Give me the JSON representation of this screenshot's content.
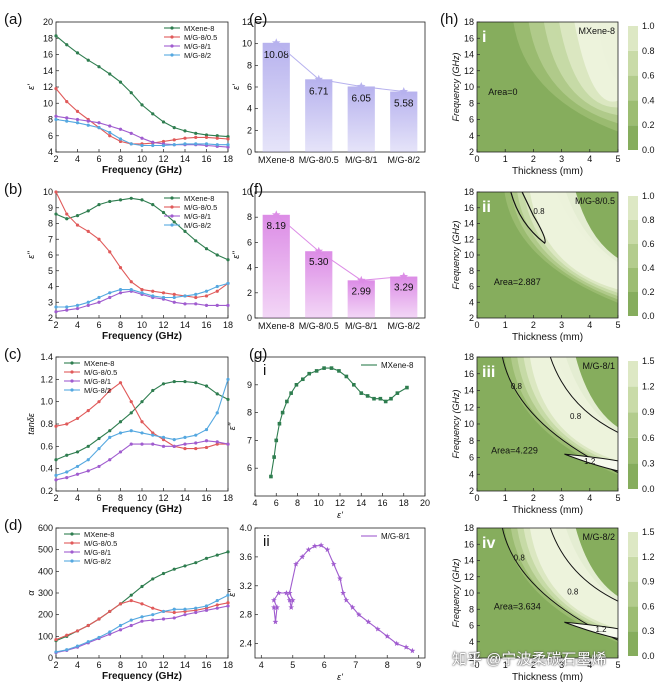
{
  "figure": {
    "watermark": "知乎 @宁波柔碳石墨烯"
  },
  "colors": {
    "black": "#2f4a2f",
    "mx": "#2e7d4f",
    "m05": "#e05a5a",
    "m1": "#a05ccf",
    "m2": "#55a8e0",
    "bar_e": "#b7b2ee",
    "bar_f": "#dc8ce6",
    "contour_dark": "#7ea65a",
    "contour_light": "#f3f7e6"
  },
  "chart_data": [
    {
      "id": "a",
      "panel_label": "(a)",
      "type": "line",
      "title": "",
      "xlabel": "Frequency (GHz)",
      "ylabel": "ε'",
      "xlim": [
        2,
        18
      ],
      "ylim": [
        4,
        20
      ],
      "xticks": [
        2,
        4,
        6,
        8,
        10,
        12,
        14,
        16,
        18
      ],
      "yticks": [
        4,
        6,
        8,
        10,
        12,
        14,
        16,
        18,
        20
      ],
      "legend_position": "top-right",
      "x": [
        2,
        3,
        4,
        5,
        6,
        7,
        8,
        9,
        10,
        11,
        12,
        13,
        14,
        15,
        16,
        17,
        18
      ],
      "series": [
        {
          "name": "MXene-8",
          "color_key": "mx",
          "values": [
            18.3,
            17.2,
            16.2,
            15.3,
            14.5,
            13.6,
            12.6,
            11.3,
            9.8,
            8.7,
            7.7,
            7.0,
            6.6,
            6.3,
            6.1,
            6.0,
            5.9
          ]
        },
        {
          "name": "M/G-8/0.5",
          "color_key": "m05",
          "values": [
            11.8,
            10.2,
            9.0,
            8.0,
            7.0,
            6.0,
            5.3,
            5.0,
            5.0,
            5.1,
            5.3,
            5.5,
            5.7,
            5.8,
            5.8,
            5.7,
            5.6
          ]
        },
        {
          "name": "M/G-8/1",
          "color_key": "m1",
          "values": [
            8.4,
            8.2,
            8.0,
            7.8,
            7.6,
            7.2,
            6.8,
            6.3,
            5.7,
            5.2,
            5.0,
            4.9,
            4.9,
            4.9,
            4.8,
            4.7,
            4.6
          ]
        },
        {
          "name": "M/G-8/2",
          "color_key": "m2",
          "values": [
            8.0,
            7.8,
            7.6,
            7.3,
            7.0,
            6.4,
            5.6,
            5.0,
            4.8,
            4.8,
            4.8,
            4.9,
            5.0,
            5.0,
            5.0,
            4.9,
            4.9
          ]
        }
      ]
    },
    {
      "id": "b",
      "panel_label": "(b)",
      "type": "line",
      "title": "",
      "xlabel": "Frequency (GHz)",
      "ylabel": "ε''",
      "xlim": [
        2,
        18
      ],
      "ylim": [
        2,
        10
      ],
      "xticks": [
        2,
        4,
        6,
        8,
        10,
        12,
        14,
        16,
        18
      ],
      "yticks": [
        2,
        3,
        4,
        5,
        6,
        7,
        8,
        9,
        10
      ],
      "legend_position": "top-right",
      "x": [
        2,
        3,
        4,
        5,
        6,
        7,
        8,
        9,
        10,
        11,
        12,
        13,
        14,
        15,
        16,
        17,
        18
      ],
      "series": [
        {
          "name": "MXene-8",
          "color_key": "mx",
          "values": [
            8.6,
            8.3,
            8.5,
            8.8,
            9.2,
            9.4,
            9.5,
            9.6,
            9.5,
            9.2,
            8.7,
            8.1,
            7.5,
            6.9,
            6.4,
            6.0,
            5.7
          ]
        },
        {
          "name": "M/G-8/0.5",
          "color_key": "m05",
          "values": [
            10.0,
            8.6,
            7.9,
            7.5,
            7.0,
            6.2,
            5.2,
            4.3,
            3.8,
            3.7,
            3.6,
            3.5,
            3.4,
            3.3,
            3.4,
            3.7,
            4.2
          ]
        },
        {
          "name": "M/G-8/1",
          "color_key": "m1",
          "values": [
            2.4,
            2.5,
            2.6,
            2.8,
            3.0,
            3.3,
            3.6,
            3.7,
            3.5,
            3.3,
            3.2,
            3.0,
            2.9,
            2.9,
            2.8,
            2.8,
            2.8
          ]
        },
        {
          "name": "M/G-8/2",
          "color_key": "m2",
          "values": [
            2.7,
            2.7,
            2.8,
            3.0,
            3.3,
            3.6,
            3.8,
            3.8,
            3.6,
            3.4,
            3.3,
            3.3,
            3.4,
            3.5,
            3.7,
            4.0,
            4.2
          ]
        }
      ]
    },
    {
      "id": "c",
      "panel_label": "(c)",
      "type": "line",
      "title": "",
      "xlabel": "Frequency (GHz)",
      "ylabel": "tanδε",
      "xlim": [
        2,
        18
      ],
      "ylim": [
        0.2,
        1.4
      ],
      "xticks": [
        2,
        4,
        6,
        8,
        10,
        12,
        14,
        16,
        18
      ],
      "yticks": [
        0.2,
        0.4,
        0.6,
        0.8,
        1.0,
        1.2,
        1.4
      ],
      "legend_position": "top-left",
      "x": [
        2,
        3,
        4,
        5,
        6,
        7,
        8,
        9,
        10,
        11,
        12,
        13,
        14,
        15,
        16,
        17,
        18
      ],
      "series": [
        {
          "name": "MXene-8",
          "color_key": "mx",
          "values": [
            0.48,
            0.52,
            0.55,
            0.6,
            0.67,
            0.74,
            0.82,
            0.9,
            1.0,
            1.1,
            1.16,
            1.18,
            1.18,
            1.17,
            1.14,
            1.07,
            1.02
          ]
        },
        {
          "name": "M/G-8/0.5",
          "color_key": "m05",
          "values": [
            0.78,
            0.8,
            0.85,
            0.92,
            1.0,
            1.1,
            1.17,
            1.0,
            0.82,
            0.72,
            0.66,
            0.6,
            0.58,
            0.58,
            0.59,
            0.62,
            0.62
          ]
        },
        {
          "name": "M/G-8/1",
          "color_key": "m1",
          "values": [
            0.3,
            0.32,
            0.35,
            0.38,
            0.42,
            0.48,
            0.55,
            0.62,
            0.62,
            0.62,
            0.6,
            0.6,
            0.62,
            0.63,
            0.65,
            0.64,
            0.62
          ]
        },
        {
          "name": "M/G-8/2",
          "color_key": "m2",
          "values": [
            0.34,
            0.37,
            0.42,
            0.48,
            0.58,
            0.68,
            0.72,
            0.74,
            0.72,
            0.7,
            0.68,
            0.66,
            0.68,
            0.7,
            0.75,
            0.9,
            1.2
          ]
        }
      ]
    },
    {
      "id": "d",
      "panel_label": "(d)",
      "type": "line",
      "title": "",
      "xlabel": "Frequency (GHz)",
      "ylabel": "α",
      "xlim": [
        2,
        18
      ],
      "ylim": [
        0,
        600
      ],
      "xticks": [
        2,
        4,
        6,
        8,
        10,
        12,
        14,
        16,
        18
      ],
      "yticks": [
        0,
        100,
        200,
        300,
        400,
        500,
        600
      ],
      "legend_position": "top-left",
      "x": [
        2,
        3,
        4,
        5,
        6,
        7,
        8,
        9,
        10,
        11,
        12,
        13,
        14,
        15,
        16,
        17,
        18
      ],
      "series": [
        {
          "name": "MXene-8",
          "color_key": "mx",
          "values": [
            80,
            100,
            125,
            150,
            180,
            215,
            250,
            290,
            330,
            365,
            390,
            410,
            425,
            440,
            460,
            475,
            490
          ]
        },
        {
          "name": "M/G-8/0.5",
          "color_key": "m05",
          "values": [
            85,
            105,
            125,
            150,
            180,
            215,
            250,
            265,
            250,
            230,
            215,
            210,
            215,
            220,
            230,
            245,
            255
          ]
        },
        {
          "name": "M/G-8/1",
          "color_key": "m1",
          "values": [
            25,
            35,
            50,
            70,
            90,
            110,
            130,
            150,
            170,
            175,
            180,
            185,
            200,
            210,
            220,
            230,
            240
          ]
        },
        {
          "name": "M/G-8/2",
          "color_key": "m2",
          "values": [
            28,
            38,
            55,
            75,
            95,
            120,
            150,
            175,
            190,
            200,
            215,
            225,
            225,
            230,
            240,
            265,
            290
          ]
        }
      ]
    },
    {
      "id": "e",
      "panel_label": "(e)",
      "type": "bar",
      "title": "",
      "xlabel": "",
      "ylabel": "ε'",
      "ylim": [
        0,
        12
      ],
      "yticks": [
        0,
        2,
        4,
        6,
        8,
        10,
        12
      ],
      "categories": [
        "MXene-8",
        "M/G-8/0.5",
        "M/G-8/1",
        "M/G-8/2"
      ],
      "values": [
        10.08,
        6.71,
        6.05,
        5.58
      ],
      "data_labels": [
        "10.08",
        "6.71",
        "6.05",
        "5.58"
      ],
      "color_key": "bar_e"
    },
    {
      "id": "f",
      "panel_label": "(f)",
      "type": "bar",
      "title": "",
      "xlabel": "",
      "ylabel": "ε''",
      "ylim": [
        0,
        10
      ],
      "yticks": [
        0,
        2,
        4,
        6,
        8,
        10
      ],
      "categories": [
        "MXene-8",
        "M/G-8/0.5",
        "M/G-8/1",
        "M/G-8/2"
      ],
      "values": [
        8.19,
        5.3,
        2.99,
        3.29
      ],
      "data_labels": [
        "8.19",
        "5.30",
        "2.99",
        "3.29"
      ],
      "color_key": "bar_f"
    },
    {
      "id": "g-i",
      "panel_label": "(g)",
      "sub_label": "i",
      "type": "line",
      "title": "",
      "xlabel": "ε'",
      "ylabel": "ε''",
      "xlim": [
        4,
        20
      ],
      "ylim": [
        5,
        10
      ],
      "xticks": [
        4,
        6,
        8,
        10,
        12,
        14,
        16,
        18,
        20
      ],
      "yticks": [
        6,
        7,
        8,
        9
      ],
      "legend_position": "top-right",
      "series": [
        {
          "name": "MXene-8",
          "color_key": "mx",
          "x": [
            5.5,
            5.8,
            6.0,
            6.3,
            6.6,
            7.0,
            7.4,
            7.9,
            8.5,
            9.1,
            9.8,
            10.5,
            11.2,
            11.9,
            12.6,
            13.3,
            14.0,
            14.6,
            15.2,
            15.8,
            16.3,
            16.8,
            17.4,
            18.3
          ],
          "y": [
            5.7,
            6.4,
            7.0,
            7.6,
            8.0,
            8.4,
            8.7,
            9.0,
            9.2,
            9.4,
            9.5,
            9.6,
            9.6,
            9.5,
            9.3,
            9.0,
            8.7,
            8.6,
            8.5,
            8.5,
            8.4,
            8.5,
            8.7,
            8.9
          ]
        }
      ]
    },
    {
      "id": "g-ii",
      "panel_label": "",
      "sub_label": "ii",
      "type": "line",
      "title": "",
      "xlabel": "ε'",
      "ylabel": "ε''",
      "xlim": [
        3.8,
        9.2
      ],
      "ylim": [
        2.2,
        4.0
      ],
      "xticks": [
        4,
        5,
        6,
        7,
        8,
        9
      ],
      "yticks": [
        2.4,
        2.8,
        3.2,
        3.6,
        4.0
      ],
      "legend_position": "top-right",
      "series": [
        {
          "name": "M/G-8/1",
          "color_key": "m1",
          "x": [
            4.4,
            4.45,
            4.5,
            4.4,
            4.55,
            4.8,
            4.9,
            4.95,
            5.0,
            4.9,
            5.1,
            5.3,
            5.5,
            5.7,
            5.9,
            6.1,
            6.3,
            6.5,
            6.6,
            6.7,
            6.9,
            7.1,
            7.4,
            7.7,
            8.0,
            8.3,
            8.6,
            8.8
          ],
          "y": [
            2.9,
            2.7,
            2.9,
            3.0,
            3.1,
            3.1,
            3.0,
            2.9,
            3.0,
            3.1,
            3.5,
            3.6,
            3.7,
            3.75,
            3.76,
            3.7,
            3.5,
            3.3,
            3.1,
            3.0,
            2.9,
            2.8,
            2.7,
            2.6,
            2.5,
            2.4,
            2.35,
            2.3
          ]
        }
      ]
    },
    {
      "id": "h-i",
      "panel_label": "(h)",
      "sub_label": "i",
      "type": "heatmap",
      "title": "MXene-8",
      "xlabel": "Thickness (mm)",
      "ylabel": "Frequency (GHz)",
      "xlim": [
        0,
        5
      ],
      "ylim": [
        2,
        18
      ],
      "xticks": [
        0,
        1,
        2,
        3,
        4,
        5
      ],
      "yticks": [
        2,
        4,
        6,
        8,
        10,
        12,
        14,
        16,
        18
      ],
      "colorbar_ticks": [
        "0.0",
        "0.2",
        "0.4",
        "0.6",
        "0.8",
        "1.0"
      ],
      "annotation": "Area=0",
      "contour_labels": []
    },
    {
      "id": "h-ii",
      "panel_label": "",
      "sub_label": "ii",
      "type": "heatmap",
      "title": "M/G-8/0.5",
      "xlabel": "Thickness (mm)",
      "ylabel": "Frequency (GHz)",
      "xlim": [
        0,
        5
      ],
      "ylim": [
        2,
        18
      ],
      "xticks": [
        0,
        1,
        2,
        3,
        4,
        5
      ],
      "yticks": [
        2,
        4,
        6,
        8,
        10,
        12,
        14,
        16,
        18
      ],
      "colorbar_ticks": [
        "0.0",
        "0.2",
        "0.4",
        "0.6",
        "0.8",
        "1.0"
      ],
      "annotation": "Area=2.887",
      "contour_labels": [
        "0.8"
      ]
    },
    {
      "id": "h-iii",
      "panel_label": "",
      "sub_label": "iii",
      "type": "heatmap",
      "title": "M/G-8/1",
      "xlabel": "Thickness (mm)",
      "ylabel": "Frequency (GHz)",
      "xlim": [
        0,
        5
      ],
      "ylim": [
        2,
        18
      ],
      "xticks": [
        0,
        1,
        2,
        3,
        4,
        5
      ],
      "yticks": [
        2,
        4,
        6,
        8,
        10,
        12,
        14,
        16,
        18
      ],
      "colorbar_ticks": [
        "0.0",
        "0.3",
        "0.6",
        "0.9",
        "1.2",
        "1.5"
      ],
      "annotation": "Area=4.229",
      "contour_labels": [
        "0.8",
        "0.8",
        "1.2"
      ]
    },
    {
      "id": "h-iv",
      "panel_label": "",
      "sub_label": "iv",
      "type": "heatmap",
      "title": "M/G-8/2",
      "xlabel": "Thickness (mm)",
      "ylabel": "Frequency (GHz)",
      "xlim": [
        0,
        5
      ],
      "ylim": [
        2,
        18
      ],
      "xticks": [
        0,
        1,
        2,
        3,
        4,
        5
      ],
      "yticks": [
        2,
        4,
        6,
        8,
        10,
        12,
        14,
        16,
        18
      ],
      "colorbar_ticks": [
        "0.0",
        "0.3",
        "0.6",
        "0.9",
        "1.2",
        "1.5"
      ],
      "annotation": "Area=3.634",
      "contour_labels": [
        "0.8",
        "0.8",
        "1.2"
      ]
    }
  ]
}
